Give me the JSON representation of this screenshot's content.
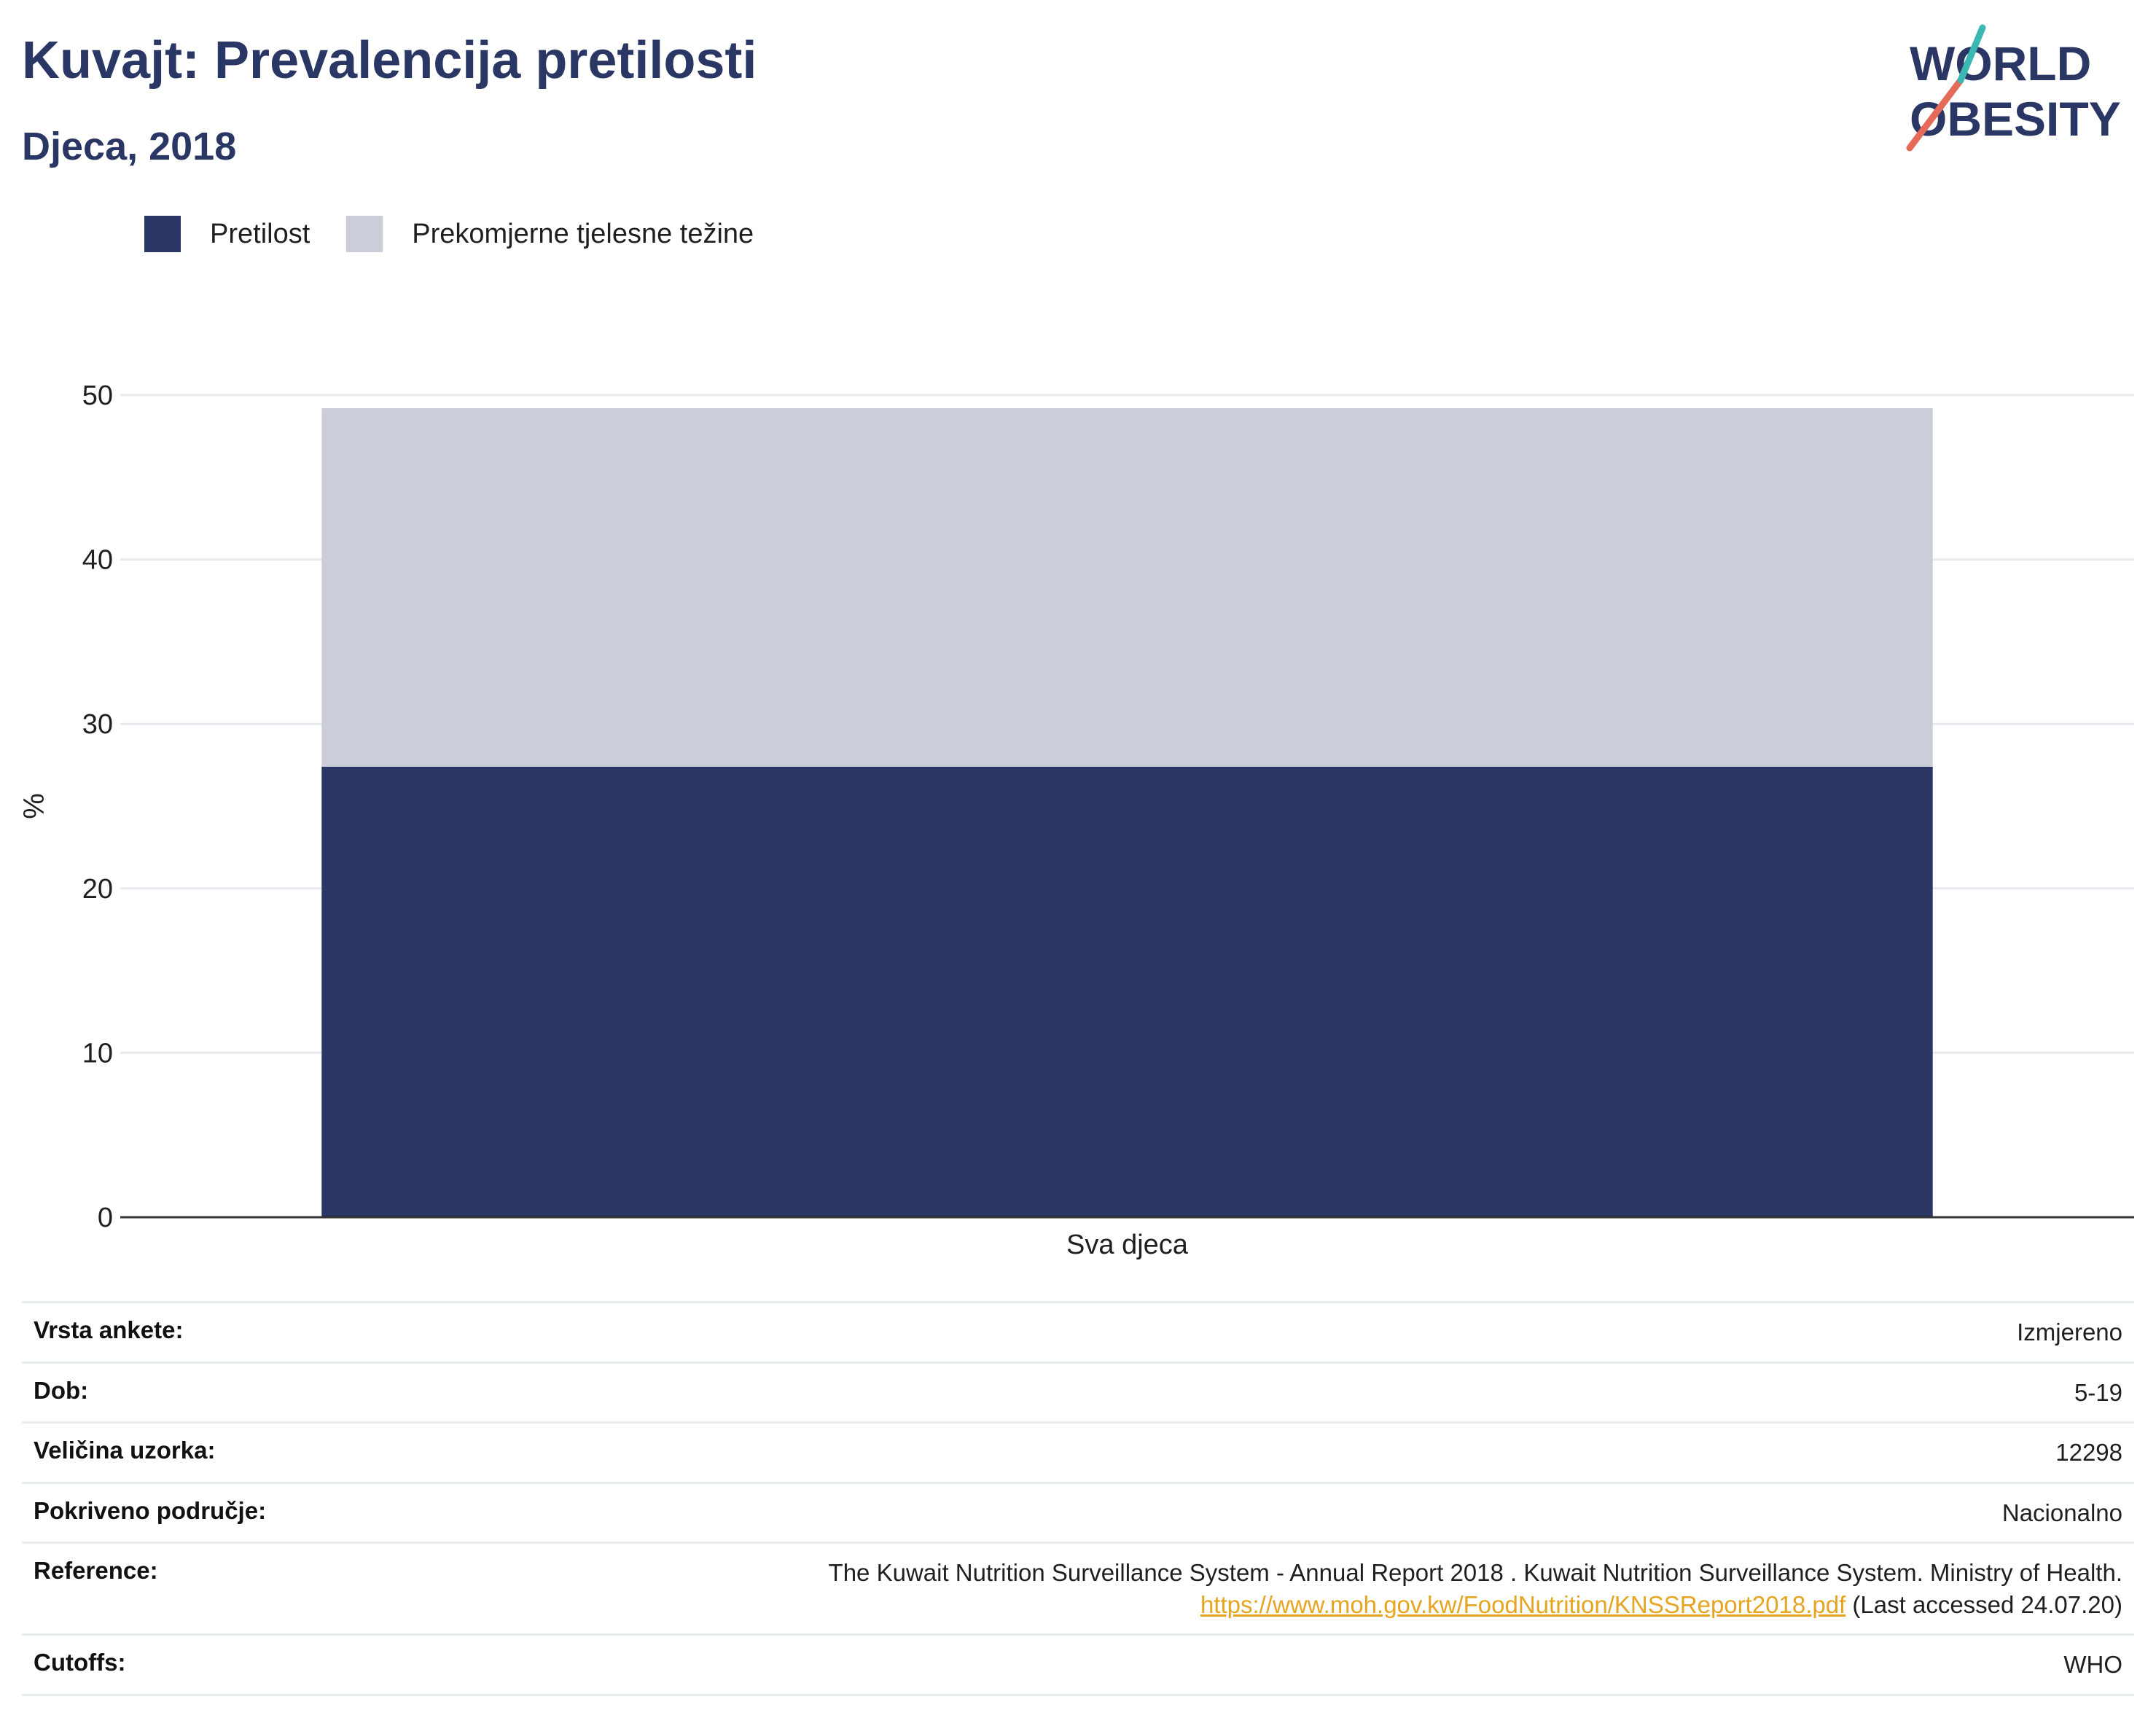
{
  "title": "Kuvajt: Prevalencija pretilosti",
  "subtitle": "Djeca, 2018",
  "logo": {
    "line1": "WORLD",
    "line2": "OBESITY",
    "text_color": "#2a3663",
    "accent_red": "#e56a5a",
    "accent_teal": "#3bb8b3"
  },
  "legend": [
    {
      "label": "Pretilost",
      "color": "#2a3663"
    },
    {
      "label": "Prekomjerne tjelesne težine",
      "color": "#cbcdd8"
    }
  ],
  "chart_data": {
    "type": "bar",
    "stacked": true,
    "categories": [
      "Sva djeca"
    ],
    "series": [
      {
        "name": "Pretilost",
        "values": [
          27.4
        ],
        "color": "#2a3663"
      },
      {
        "name": "Prekomjerne tjelesne težine",
        "values": [
          21.8
        ],
        "color": "#cbcdd8"
      }
    ],
    "ylabel": "%",
    "xlabel": "",
    "ylim": [
      0,
      50
    ],
    "yticks": [
      0,
      10,
      20,
      30,
      40,
      50
    ],
    "grid": true,
    "legend_position": "top-left"
  },
  "info": [
    {
      "key": "Vrsta ankete:",
      "value": "Izmjereno"
    },
    {
      "key": "Dob:",
      "value": "5-19"
    },
    {
      "key": "Veličina uzorka:",
      "value": "12298"
    },
    {
      "key": "Pokriveno područje:",
      "value": "Nacionalno"
    },
    {
      "key": "Reference:",
      "value": "The Kuwait Nutrition Surveillance System - Annual Report 2018 . Kuwait Nutrition Surveillance System. Ministry of Health.",
      "link": "https://www.moh.gov.kw/FoodNutrition/KNSSReport2018.pdf",
      "suffix": " (Last accessed 24.07.20)"
    },
    {
      "key": "Cutoffs:",
      "value": "WHO"
    }
  ]
}
